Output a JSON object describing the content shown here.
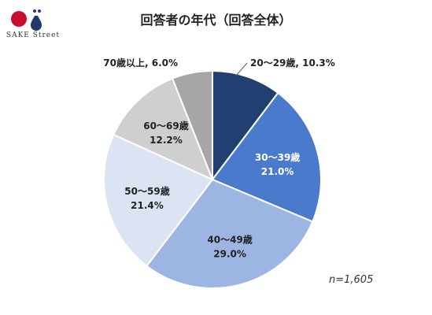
{
  "brand": {
    "logo_text": "SAKE Street",
    "colors": {
      "red_dot": "#c8102e",
      "navy_mark": "#1f3a6b"
    }
  },
  "chart_data": {
    "type": "pie",
    "title": "回答者の年代（回答全体）",
    "note": "n=1,605",
    "slices": [
      {
        "label": "20～29歳",
        "value": 10.3,
        "value_label": "10.3%",
        "color": "#213f70",
        "text_color": "#222222",
        "label_outside": true
      },
      {
        "label": "30～39歳",
        "value": 21.0,
        "value_label": "21.0%",
        "color": "#4a7acc",
        "text_color": "#ffffff",
        "label_outside": false
      },
      {
        "label": "40～49歳",
        "value": 29.0,
        "value_label": "29.0%",
        "color": "#9cb5e3",
        "text_color": "#222222",
        "label_outside": false
      },
      {
        "label": "50～59歳",
        "value": 21.4,
        "value_label": "21.4%",
        "color": "#dce4f4",
        "text_color": "#222222",
        "label_outside": false
      },
      {
        "label": "60～69歳",
        "value": 12.2,
        "value_label": "12.2%",
        "color": "#cfcfcf",
        "text_color": "#222222",
        "label_outside": false
      },
      {
        "label": "70歳以上",
        "value": 6.0,
        "value_label": "6.0%",
        "color": "#a6a6a6",
        "text_color": "#222222",
        "label_outside": true
      }
    ]
  }
}
